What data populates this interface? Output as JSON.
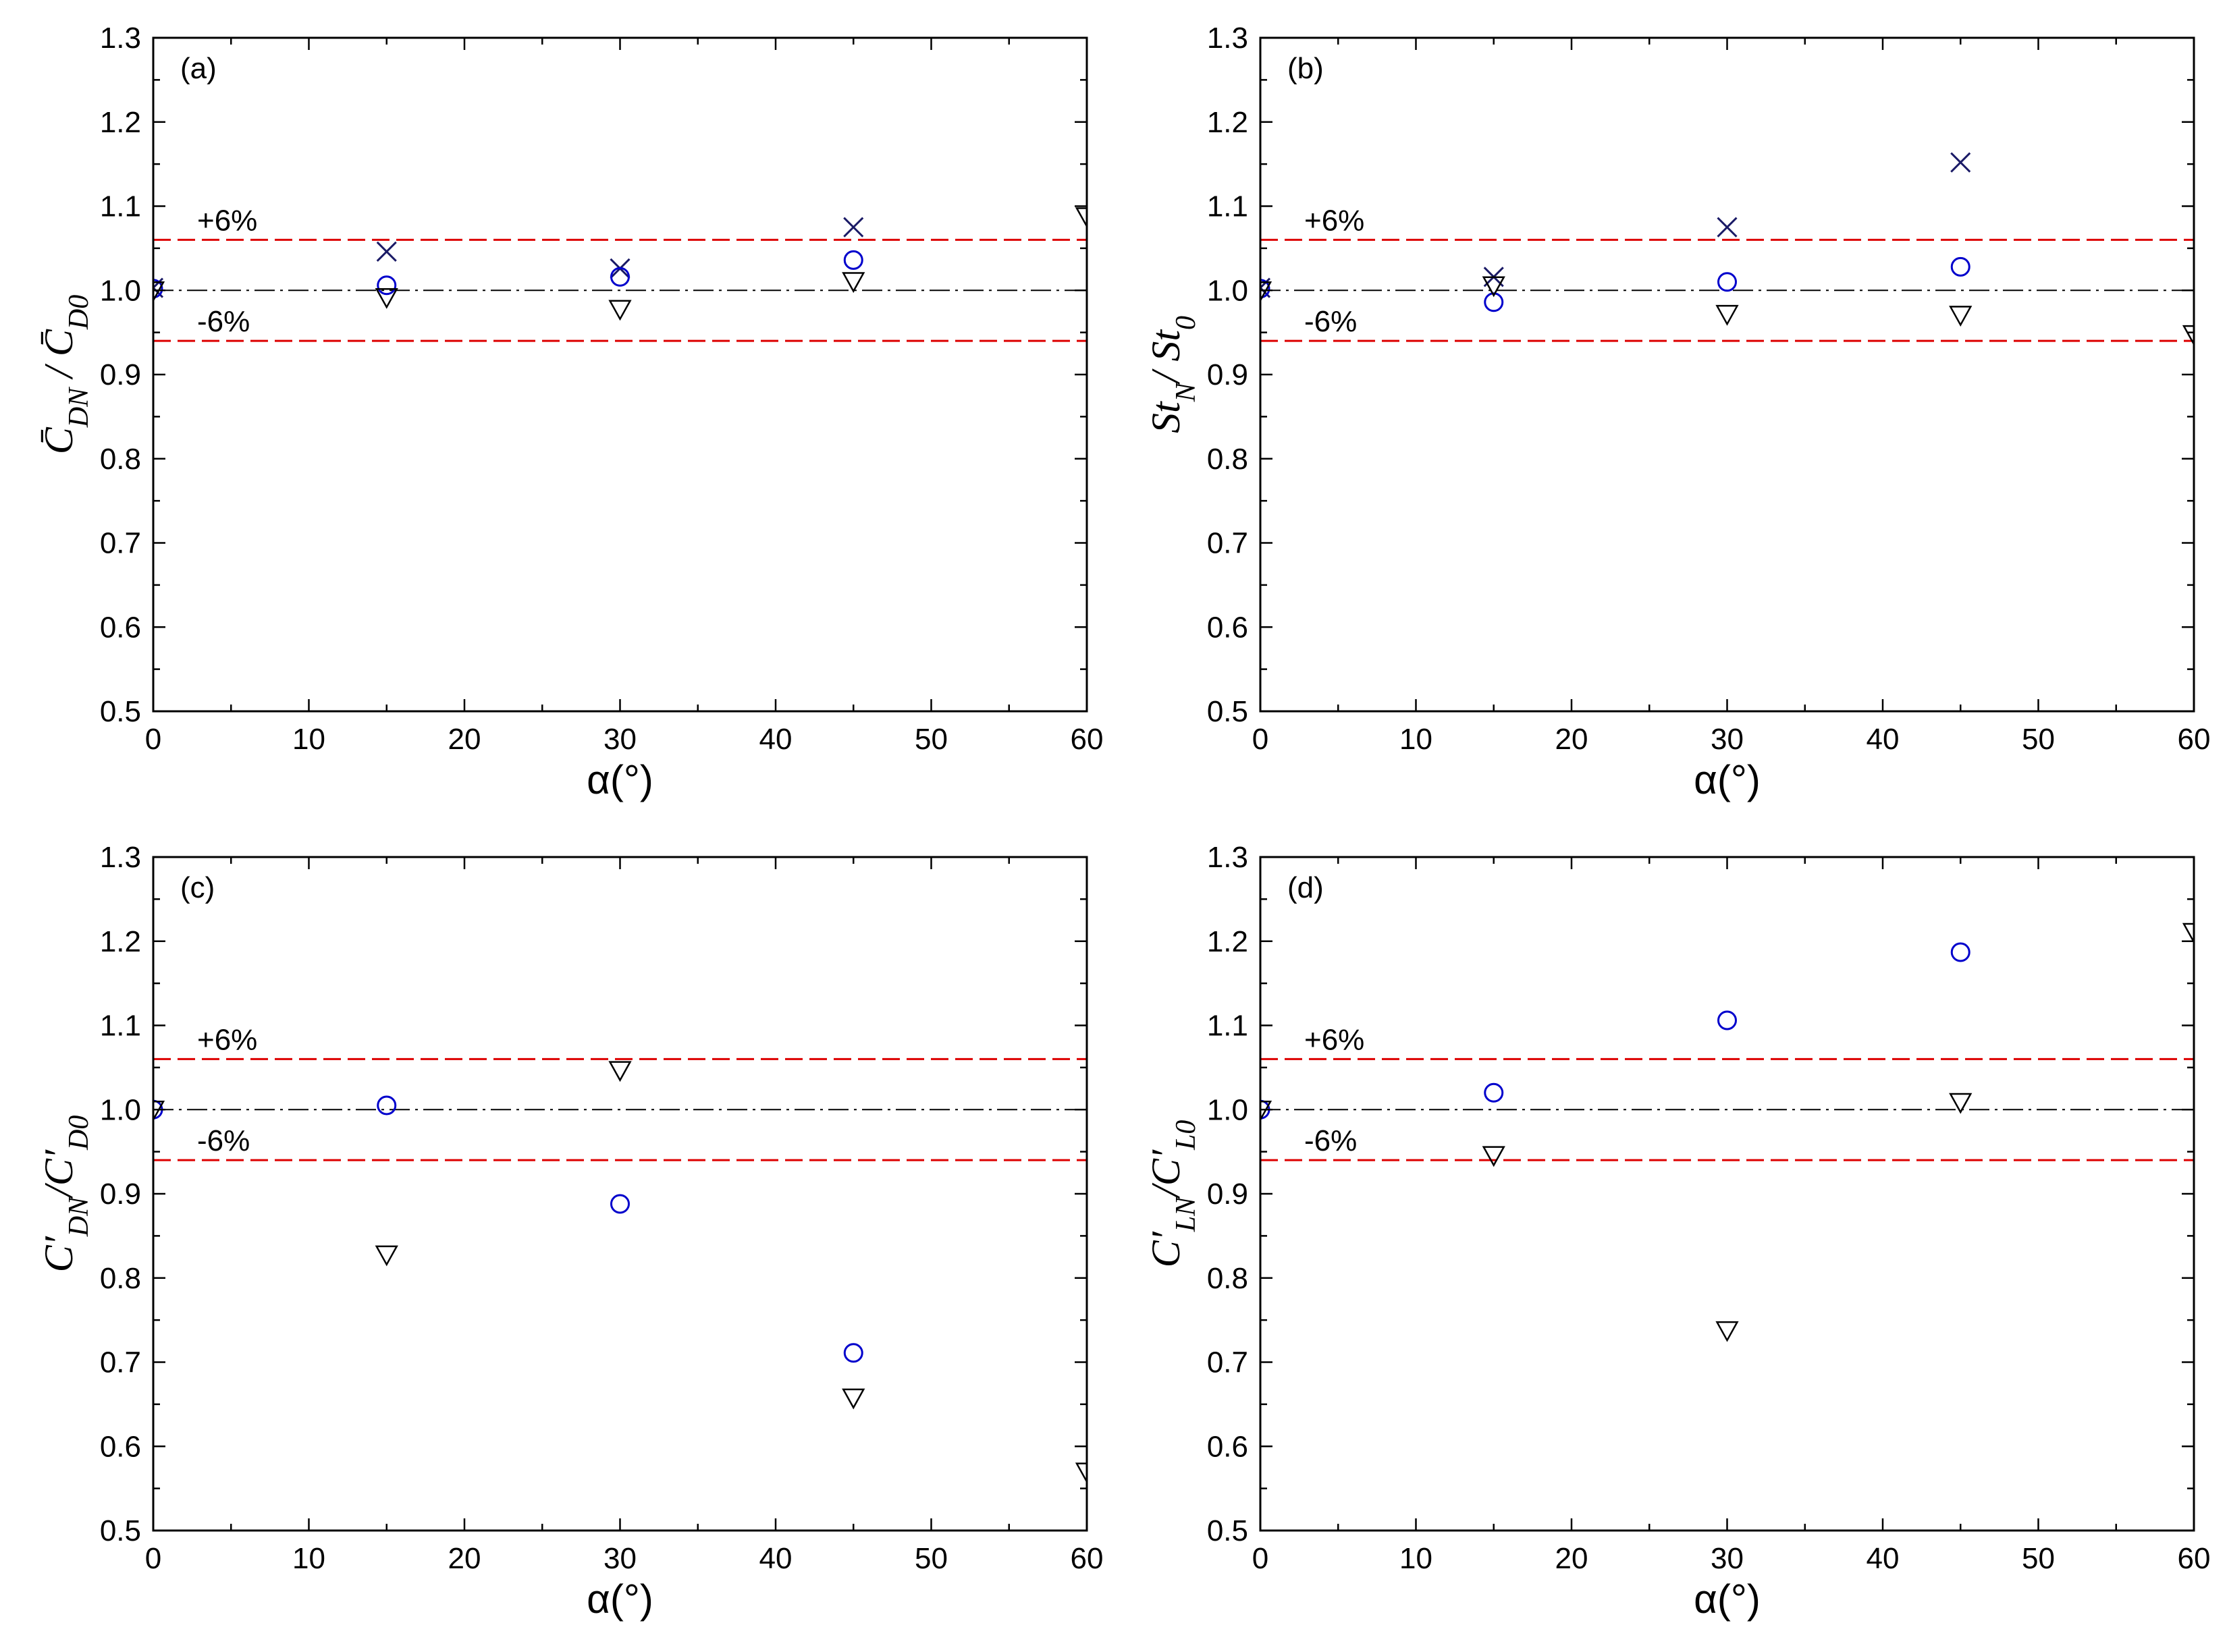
{
  "colors": {
    "circle": "#0000cc",
    "cross": "#1a1a66",
    "triangle": "#000000",
    "band": "#dd0000",
    "reference": "#000000"
  },
  "chart_data": [
    {
      "type": "scatter",
      "panel_label": "(a)",
      "xlabel": "α(°)",
      "ylabel": "C̄DN / C̄D0",
      "ylabel_main": "C̄",
      "ylabel_sub_num": "DN",
      "ylabel_sep": " / ",
      "ylabel_den": "C̄",
      "ylabel_sub_den": "D0",
      "xlim": [
        0,
        60
      ],
      "ylim": [
        0.5,
        1.3
      ],
      "xticks": [
        "0",
        "10",
        "20",
        "30",
        "40",
        "50",
        "60"
      ],
      "yticks": [
        "0.5",
        "0.6",
        "0.7",
        "0.8",
        "0.9",
        "1.0",
        "1.1",
        "1.2",
        "1.3"
      ],
      "reference_line": 1.0,
      "band_upper": 1.06,
      "band_lower": 0.94,
      "band_upper_label": "+6%",
      "band_lower_label": "-6%",
      "series": [
        {
          "name": "cross",
          "marker": "x",
          "x": [
            0,
            15,
            30,
            45
          ],
          "y": [
            1.003,
            1.046,
            1.026,
            1.075
          ]
        },
        {
          "name": "circle",
          "marker": "o",
          "x": [
            0,
            15,
            30,
            45
          ],
          "y": [
            1.002,
            1.006,
            1.016,
            1.036
          ]
        },
        {
          "name": "triangle",
          "marker": "v",
          "x": [
            0,
            15,
            30,
            45,
            60
          ],
          "y": [
            1.0,
            0.992,
            0.978,
            1.011,
            1.088
          ]
        }
      ]
    },
    {
      "type": "scatter",
      "panel_label": "(b)",
      "xlabel": "α(°)",
      "ylabel": "StN/ St0",
      "ylabel_main": "St",
      "ylabel_sub_num": "N",
      "ylabel_sep": "/ ",
      "ylabel_den": "St",
      "ylabel_sub_den": "0",
      "xlim": [
        0,
        60
      ],
      "ylim": [
        0.5,
        1.3
      ],
      "xticks": [
        "0",
        "10",
        "20",
        "30",
        "40",
        "50",
        "60"
      ],
      "yticks": [
        "0.5",
        "0.6",
        "0.7",
        "0.8",
        "0.9",
        "1.0",
        "1.1",
        "1.2",
        "1.3"
      ],
      "reference_line": 1.0,
      "band_upper": 1.06,
      "band_lower": 0.94,
      "band_upper_label": "+6%",
      "band_lower_label": "-6%",
      "series": [
        {
          "name": "cross",
          "marker": "x",
          "x": [
            0,
            15,
            30,
            45
          ],
          "y": [
            1.003,
            1.016,
            1.075,
            1.152
          ]
        },
        {
          "name": "circle",
          "marker": "o",
          "x": [
            0,
            15,
            30,
            45
          ],
          "y": [
            1.002,
            0.986,
            1.01,
            1.028
          ]
        },
        {
          "name": "triangle",
          "marker": "v",
          "x": [
            0,
            15,
            30,
            45,
            60
          ],
          "y": [
            1.0,
            1.006,
            0.972,
            0.971,
            0.948
          ]
        }
      ]
    },
    {
      "type": "scatter",
      "panel_label": "(c)",
      "xlabel": "α(°)",
      "ylabel": "C′DN/C′D0",
      "ylabel_main": "C′",
      "ylabel_sub_num": "DN",
      "ylabel_sep": "/",
      "ylabel_den": "C′",
      "ylabel_sub_den": "D0",
      "xlim": [
        0,
        60
      ],
      "ylim": [
        0.5,
        1.3
      ],
      "xticks": [
        "0",
        "10",
        "20",
        "30",
        "40",
        "50",
        "60"
      ],
      "yticks": [
        "0.5",
        "0.6",
        "0.7",
        "0.8",
        "0.9",
        "1.0",
        "1.1",
        "1.2",
        "1.3"
      ],
      "reference_line": 1.0,
      "band_upper": 1.06,
      "band_lower": 0.94,
      "band_upper_label": "+6%",
      "band_lower_label": "-6%",
      "series": [
        {
          "name": "circle",
          "marker": "o",
          "x": [
            0,
            15,
            30,
            45
          ],
          "y": [
            1.0,
            1.005,
            0.888,
            0.711
          ]
        },
        {
          "name": "triangle",
          "marker": "v",
          "x": [
            0,
            15,
            30,
            45,
            60
          ],
          "y": [
            1.0,
            0.828,
            1.047,
            0.658,
            0.57
          ]
        }
      ]
    },
    {
      "type": "scatter",
      "panel_label": "(d)",
      "xlabel": "α(°)",
      "ylabel": "C′LN/C′L0",
      "ylabel_main": "C′",
      "ylabel_sub_num": "LN",
      "ylabel_sep": "/",
      "ylabel_den": "C′",
      "ylabel_sub_den": "L0",
      "xlim": [
        0,
        60
      ],
      "ylim": [
        0.5,
        1.3
      ],
      "xticks": [
        "0",
        "10",
        "20",
        "30",
        "40",
        "50",
        "60"
      ],
      "yticks": [
        "0.5",
        "0.6",
        "0.7",
        "0.8",
        "0.9",
        "1.0",
        "1.1",
        "1.2",
        "1.3"
      ],
      "reference_line": 1.0,
      "band_upper": 1.06,
      "band_lower": 0.94,
      "band_upper_label": "+6%",
      "band_lower_label": "-6%",
      "series": [
        {
          "name": "circle",
          "marker": "o",
          "x": [
            0,
            15,
            30,
            45
          ],
          "y": [
            1.0,
            1.02,
            1.106,
            1.187
          ]
        },
        {
          "name": "triangle",
          "marker": "v",
          "x": [
            0,
            15,
            30,
            45,
            60
          ],
          "y": [
            1.0,
            0.946,
            0.738,
            1.009,
            1.211
          ]
        }
      ]
    }
  ]
}
